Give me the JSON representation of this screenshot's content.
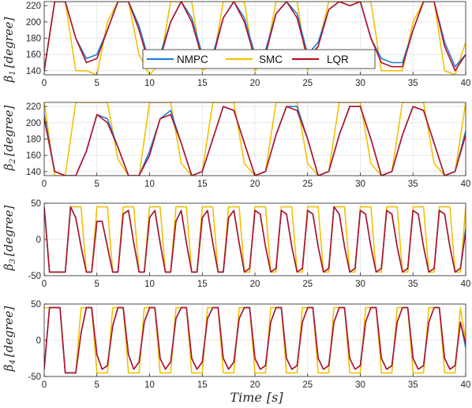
{
  "colors": {
    "NMPC": "#1f7fd6",
    "SMC": "#f2c200",
    "LQR": "#b5122b",
    "grid": "#e3e3e3",
    "axis": "#262626"
  },
  "legend": {
    "placement": "top-center (first panel)",
    "entries": [
      "NMPC",
      "SMC",
      "LQR"
    ]
  },
  "xlabel": {
    "var": "Time",
    "unit": "[s]"
  },
  "panels": [
    {
      "sym": "β",
      "sub": "1",
      "unit": "[degree]"
    },
    {
      "sym": "β",
      "sub": "2",
      "unit": "[degree]"
    },
    {
      "sym": "β",
      "sub": "3",
      "unit": "[degree]"
    },
    {
      "sym": "β",
      "sub": "4",
      "unit": "[degree]"
    }
  ],
  "chart_data": [
    {
      "type": "line",
      "ylabel": "β1 [degree]",
      "xlabel": "",
      "xlim": [
        0,
        40
      ],
      "xticks": [
        0,
        5,
        10,
        15,
        20,
        25,
        30,
        35,
        40
      ],
      "ylim": [
        135,
        225
      ],
      "yticks": [
        140,
        160,
        180,
        200,
        220
      ],
      "grid": true,
      "legend": "top-center",
      "x": [
        0,
        1,
        2,
        3,
        4,
        5,
        6,
        7,
        8,
        9,
        10,
        11,
        12,
        13,
        14,
        15,
        16,
        17,
        18,
        19,
        20,
        21,
        22,
        23,
        24,
        25,
        26,
        27,
        28,
        29,
        30,
        31,
        32,
        33,
        34,
        35,
        36,
        37,
        38,
        39,
        40
      ],
      "series": [
        {
          "name": "NMPC",
          "values": [
            140,
            225,
            225,
            180,
            155,
            160,
            190,
            225,
            225,
            195,
            150,
            160,
            200,
            225,
            205,
            160,
            160,
            205,
            225,
            205,
            160,
            165,
            210,
            225,
            210,
            160,
            175,
            215,
            225,
            220,
            225,
            180,
            155,
            150,
            150,
            190,
            225,
            225,
            175,
            145,
            160
          ]
        },
        {
          "name": "SMC",
          "values": [
            140,
            225,
            225,
            140,
            140,
            135,
            200,
            225,
            225,
            160,
            135,
            150,
            225,
            225,
            225,
            140,
            150,
            225,
            225,
            225,
            140,
            155,
            225,
            225,
            225,
            140,
            170,
            225,
            225,
            225,
            225,
            225,
            140,
            140,
            140,
            200,
            225,
            225,
            140,
            135,
            175
          ]
        },
        {
          "name": "LQR",
          "values": [
            140,
            225,
            225,
            180,
            150,
            155,
            190,
            225,
            225,
            190,
            145,
            155,
            200,
            225,
            200,
            155,
            155,
            205,
            225,
            200,
            155,
            160,
            210,
            225,
            205,
            155,
            170,
            215,
            225,
            220,
            225,
            180,
            150,
            145,
            145,
            190,
            225,
            225,
            170,
            140,
            160
          ]
        }
      ]
    },
    {
      "type": "line",
      "ylabel": "β2 [degree]",
      "xlabel": "",
      "xlim": [
        0,
        40
      ],
      "xticks": [
        0,
        5,
        10,
        15,
        20,
        25,
        30,
        35,
        40
      ],
      "ylim": [
        135,
        225
      ],
      "yticks": [
        140,
        160,
        180,
        200,
        220
      ],
      "grid": true,
      "x": [
        0,
        1,
        2,
        3,
        4,
        5,
        6,
        7,
        8,
        9,
        10,
        11,
        12,
        13,
        14,
        15,
        16,
        17,
        18,
        19,
        20,
        21,
        22,
        23,
        24,
        25,
        26,
        27,
        28,
        29,
        30,
        31,
        32,
        33,
        34,
        35,
        36,
        37,
        38,
        39,
        40
      ],
      "series": [
        {
          "name": "NMPC",
          "values": [
            210,
            140,
            135,
            135,
            165,
            210,
            205,
            170,
            135,
            135,
            165,
            205,
            215,
            175,
            135,
            140,
            180,
            220,
            215,
            175,
            135,
            140,
            185,
            220,
            220,
            180,
            135,
            140,
            185,
            220,
            220,
            180,
            135,
            140,
            185,
            220,
            215,
            175,
            135,
            140,
            190
          ]
        },
        {
          "name": "SMC",
          "values": [
            225,
            135,
            135,
            225,
            225,
            225,
            225,
            155,
            135,
            135,
            225,
            225,
            225,
            150,
            135,
            140,
            225,
            225,
            225,
            150,
            135,
            140,
            225,
            225,
            225,
            150,
            135,
            140,
            225,
            225,
            225,
            150,
            135,
            140,
            225,
            225,
            225,
            150,
            135,
            140,
            225
          ]
        },
        {
          "name": "LQR",
          "values": [
            205,
            140,
            135,
            135,
            165,
            210,
            200,
            170,
            135,
            135,
            160,
            205,
            210,
            175,
            135,
            140,
            180,
            220,
            215,
            175,
            135,
            140,
            185,
            220,
            215,
            180,
            135,
            140,
            185,
            220,
            220,
            180,
            135,
            140,
            185,
            220,
            215,
            175,
            135,
            140,
            185
          ]
        }
      ]
    },
    {
      "type": "line",
      "ylabel": "β3 [degree]",
      "xlabel": "",
      "xlim": [
        0,
        40
      ],
      "xticks": [
        0,
        5,
        10,
        15,
        20,
        25,
        30,
        35,
        40
      ],
      "ylim": [
        -50,
        50
      ],
      "yticks": [
        -50,
        0,
        50
      ],
      "grid": true,
      "x": [
        0,
        0.5,
        1,
        1.5,
        2,
        2.5,
        3,
        3.5,
        4,
        4.5,
        5,
        5.5,
        6,
        6.5,
        7,
        7.5,
        8,
        8.5,
        9,
        9.5,
        10,
        10.5,
        11,
        11.5,
        12,
        12.5,
        13,
        13.5,
        14,
        14.5,
        15,
        15.5,
        16,
        16.5,
        17,
        17.5,
        18,
        18.5,
        19,
        19.5,
        20,
        20.5,
        21,
        21.5,
        22,
        22.5,
        23,
        23.5,
        24,
        24.5,
        25,
        25.5,
        26,
        26.5,
        27,
        27.5,
        28,
        28.5,
        29,
        29.5,
        30,
        30.5,
        31,
        31.5,
        32,
        32.5,
        33,
        33.5,
        34,
        34.5,
        35,
        35.5,
        36,
        36.5,
        37,
        37.5,
        38,
        38.5,
        39,
        39.5,
        40
      ],
      "series": [
        {
          "name": "NMPC",
          "values": [
            45,
            -45,
            -45,
            -45,
            -45,
            45,
            30,
            -10,
            -45,
            -45,
            25,
            25,
            -10,
            -45,
            -45,
            35,
            40,
            -5,
            -45,
            -45,
            30,
            40,
            -5,
            -45,
            -45,
            25,
            40,
            -5,
            -45,
            -45,
            30,
            40,
            -5,
            -45,
            -45,
            30,
            40,
            -5,
            -45,
            -40,
            40,
            35,
            -10,
            -45,
            -40,
            40,
            35,
            -10,
            -45,
            -40,
            40,
            35,
            -10,
            -45,
            -40,
            45,
            35,
            -10,
            -45,
            -40,
            40,
            35,
            -10,
            -45,
            -40,
            40,
            35,
            -10,
            -45,
            -40,
            40,
            35,
            -10,
            -45,
            -40,
            40,
            35,
            -10,
            -45,
            -40,
            15
          ]
        },
        {
          "name": "SMC",
          "values": [
            45,
            -45,
            -45,
            -45,
            -45,
            45,
            45,
            45,
            -45,
            -45,
            45,
            45,
            45,
            -45,
            -45,
            45,
            45,
            45,
            -45,
            -45,
            45,
            45,
            45,
            -45,
            -45,
            45,
            45,
            45,
            -45,
            -45,
            45,
            45,
            45,
            -45,
            -45,
            45,
            45,
            45,
            -45,
            -45,
            45,
            45,
            45,
            -45,
            -45,
            45,
            45,
            45,
            -45,
            -45,
            45,
            45,
            45,
            -45,
            -45,
            45,
            45,
            45,
            -45,
            -45,
            45,
            45,
            45,
            -45,
            -45,
            45,
            45,
            45,
            -45,
            -45,
            45,
            45,
            45,
            -45,
            -45,
            45,
            45,
            45,
            -45,
            -45,
            45
          ]
        },
        {
          "name": "LQR",
          "values": [
            45,
            -45,
            -45,
            -45,
            -45,
            45,
            30,
            -10,
            -45,
            -45,
            25,
            25,
            -10,
            -45,
            -45,
            35,
            40,
            -5,
            -45,
            -45,
            30,
            40,
            -5,
            -45,
            -45,
            25,
            40,
            -5,
            -45,
            -45,
            30,
            40,
            -5,
            -45,
            -45,
            30,
            40,
            -5,
            -45,
            -40,
            40,
            35,
            -10,
            -45,
            -40,
            40,
            35,
            -10,
            -45,
            -40,
            40,
            35,
            -10,
            -45,
            -40,
            45,
            35,
            -10,
            -45,
            -40,
            40,
            35,
            -10,
            -45,
            -40,
            40,
            35,
            -10,
            -45,
            -40,
            40,
            35,
            -10,
            -45,
            -40,
            40,
            35,
            -10,
            -45,
            -40,
            10
          ]
        }
      ]
    },
    {
      "type": "line",
      "ylabel": "β4 [degree]",
      "xlabel": "Time [s]",
      "xlim": [
        0,
        40
      ],
      "xticks": [
        0,
        5,
        10,
        15,
        20,
        25,
        30,
        35,
        40
      ],
      "ylim": [
        -50,
        50
      ],
      "yticks": [
        -50,
        0,
        50
      ],
      "grid": true,
      "x": [
        0,
        0.5,
        1,
        1.5,
        2,
        2.5,
        3,
        3.5,
        4,
        4.5,
        5,
        5.5,
        6,
        6.5,
        7,
        7.5,
        8,
        8.5,
        9,
        9.5,
        10,
        10.5,
        11,
        11.5,
        12,
        12.5,
        13,
        13.5,
        14,
        14.5,
        15,
        15.5,
        16,
        16.5,
        17,
        17.5,
        18,
        18.5,
        19,
        19.5,
        20,
        20.5,
        21,
        21.5,
        22,
        22.5,
        23,
        23.5,
        24,
        24.5,
        25,
        25.5,
        26,
        26.5,
        27,
        27.5,
        28,
        28.5,
        29,
        29.5,
        30,
        30.5,
        31,
        31.5,
        32,
        32.5,
        33,
        33.5,
        34,
        34.5,
        35,
        35.5,
        36,
        36.5,
        37,
        37.5,
        38,
        38.5,
        39,
        39.5,
        40
      ],
      "series": [
        {
          "name": "NMPC",
          "values": [
            -40,
            45,
            45,
            45,
            -45,
            -45,
            -45,
            10,
            45,
            45,
            -20,
            -40,
            -35,
            20,
            45,
            45,
            -20,
            -40,
            -30,
            25,
            45,
            45,
            -25,
            -40,
            -30,
            30,
            45,
            45,
            -25,
            -40,
            -30,
            30,
            45,
            45,
            -25,
            -40,
            -30,
            30,
            45,
            45,
            -25,
            -40,
            -35,
            25,
            45,
            45,
            -25,
            -40,
            -35,
            25,
            45,
            45,
            -25,
            -40,
            -35,
            25,
            45,
            45,
            -25,
            -40,
            -35,
            25,
            45,
            45,
            -25,
            -40,
            -35,
            25,
            45,
            45,
            -25,
            -40,
            -35,
            25,
            45,
            45,
            -25,
            -40,
            -35,
            25,
            -10
          ]
        },
        {
          "name": "SMC",
          "values": [
            45,
            45,
            45,
            45,
            -45,
            -45,
            -45,
            45,
            45,
            45,
            -45,
            -45,
            -45,
            45,
            45,
            45,
            -45,
            -45,
            -45,
            45,
            45,
            45,
            -45,
            -45,
            -45,
            45,
            45,
            45,
            -45,
            -45,
            -45,
            45,
            45,
            45,
            -45,
            -45,
            -45,
            45,
            45,
            45,
            -45,
            -45,
            -45,
            45,
            45,
            45,
            -45,
            -45,
            -45,
            45,
            45,
            45,
            -45,
            -45,
            -45,
            45,
            45,
            45,
            -45,
            -45,
            -45,
            45,
            45,
            45,
            -45,
            -45,
            -45,
            45,
            45,
            45,
            -45,
            -45,
            -45,
            45,
            45,
            45,
            -45,
            -45,
            -45,
            45,
            0
          ]
        },
        {
          "name": "LQR",
          "values": [
            -40,
            45,
            45,
            45,
            -45,
            -45,
            -45,
            10,
            45,
            45,
            -20,
            -40,
            -35,
            20,
            45,
            45,
            -20,
            -40,
            -30,
            25,
            45,
            45,
            -25,
            -40,
            -30,
            30,
            45,
            45,
            -25,
            -40,
            -30,
            30,
            45,
            45,
            -25,
            -40,
            -30,
            30,
            45,
            45,
            -25,
            -40,
            -35,
            25,
            45,
            45,
            -25,
            -40,
            -35,
            25,
            45,
            45,
            -25,
            -40,
            -35,
            25,
            45,
            45,
            -25,
            -40,
            -35,
            25,
            45,
            45,
            -25,
            -40,
            -35,
            25,
            45,
            45,
            -25,
            -40,
            -35,
            25,
            45,
            45,
            -25,
            -40,
            -35,
            25,
            -5
          ]
        }
      ]
    }
  ]
}
